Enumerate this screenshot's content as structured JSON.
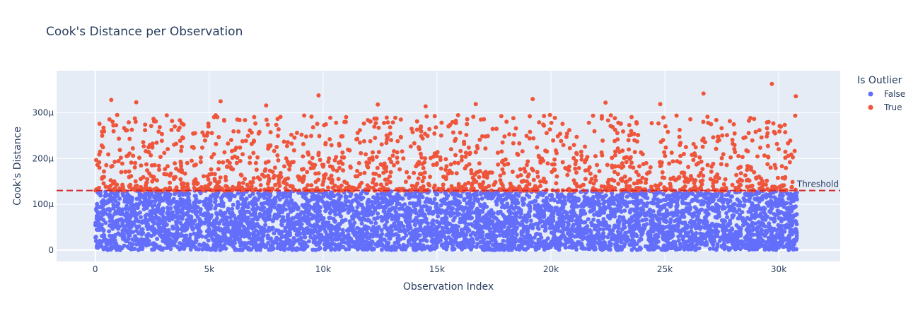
{
  "chart_data": {
    "type": "scatter",
    "title": "Cook's Distance per Observation",
    "xlabel": "Observation Index",
    "ylabel": "Cook's Distance",
    "xlim": [
      -1700,
      32700
    ],
    "ylim": [
      -2.5e-05,
      0.000392
    ],
    "x_ticks": [
      0,
      5000,
      10000,
      15000,
      20000,
      25000,
      30000
    ],
    "x_tick_labels": [
      "0",
      "5k",
      "10k",
      "15k",
      "20k",
      "25k",
      "30k"
    ],
    "y_ticks": [
      0,
      0.0001,
      0.0002,
      0.0003
    ],
    "y_tick_labels": [
      "0",
      "100μ",
      "200μ",
      "300μ"
    ],
    "grid": true,
    "n_observations": 30800,
    "threshold": {
      "value": 0.00013,
      "label": "Threshold",
      "color": "#d62728",
      "style": "dashed"
    },
    "legend": {
      "title": "Is Outlier",
      "placement": "right"
    },
    "series": [
      {
        "name": "False",
        "color": "#636efa",
        "range": [
          0,
          0.00013
        ]
      },
      {
        "name": "True",
        "color": "#ef553b",
        "range": [
          0.00013,
          0.000365
        ],
        "notable_points": [
          {
            "x": 29700,
            "y": 0.000363
          },
          {
            "x": 26700,
            "y": 0.000342
          },
          {
            "x": 9800,
            "y": 0.000338
          },
          {
            "x": 30750,
            "y": 0.000336
          },
          {
            "x": 19200,
            "y": 0.00033
          },
          {
            "x": 700,
            "y": 0.000328
          },
          {
            "x": 1800,
            "y": 0.000323
          },
          {
            "x": 5500,
            "y": 0.000325
          },
          {
            "x": 22400,
            "y": 0.000322
          },
          {
            "x": 12400,
            "y": 0.000318
          },
          {
            "x": 16700,
            "y": 0.000319
          },
          {
            "x": 24800,
            "y": 0.000319
          },
          {
            "x": 7500,
            "y": 0.000316
          },
          {
            "x": 14500,
            "y": 0.000314
          }
        ]
      }
    ]
  }
}
